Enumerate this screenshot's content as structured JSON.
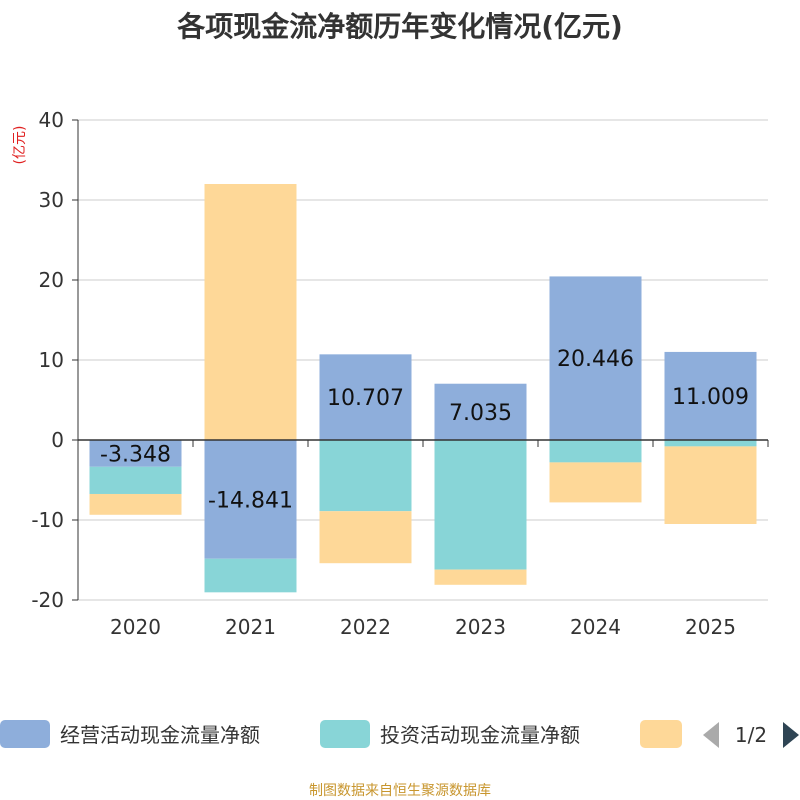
{
  "chart_data": {
    "type": "bar",
    "stacked": true,
    "title": "各项现金流净额历年变化情况(亿元)",
    "ylabel": "(亿元)",
    "xlabel": "",
    "ylim": [
      -20,
      40
    ],
    "yticks": [
      -20,
      -10,
      0,
      10,
      20,
      30,
      40
    ],
    "grid": true,
    "categories": [
      "2020",
      "2021",
      "2022",
      "2023",
      "2024",
      "2025"
    ],
    "series": [
      {
        "name": "经营活动现金流量净额",
        "color": "#8eaedb",
        "values": [
          -3.348,
          -14.841,
          10.707,
          7.035,
          20.446,
          11.009
        ],
        "labels": [
          "-3.348",
          "-14.841",
          "10.707",
          "7.035",
          "20.446",
          "11.009"
        ]
      },
      {
        "name": "投资活动现金流量净额",
        "color": "#88d5d7",
        "values": [
          -3.4,
          -4.2,
          -8.9,
          -16.2,
          -2.8,
          -0.8
        ]
      },
      {
        "name": "",
        "color": "#fed898",
        "values": [
          -2.6,
          32.0,
          -6.5,
          -1.9,
          -5.0,
          -9.7
        ]
      }
    ]
  },
  "legend": {
    "items": [
      {
        "label": "经营活动现金流量净额",
        "color": "#8eaedb"
      },
      {
        "label": "投资活动现金流量净额",
        "color": "#88d5d7"
      },
      {
        "label": "",
        "color": "#fed898"
      }
    ],
    "page": "1/2",
    "prev_icon": "triangle-left-icon",
    "next_icon": "triangle-right-icon",
    "prev_color": "#aaaaaa",
    "next_color": "#2f4554"
  },
  "source": "制图数据来自恒生聚源数据库"
}
